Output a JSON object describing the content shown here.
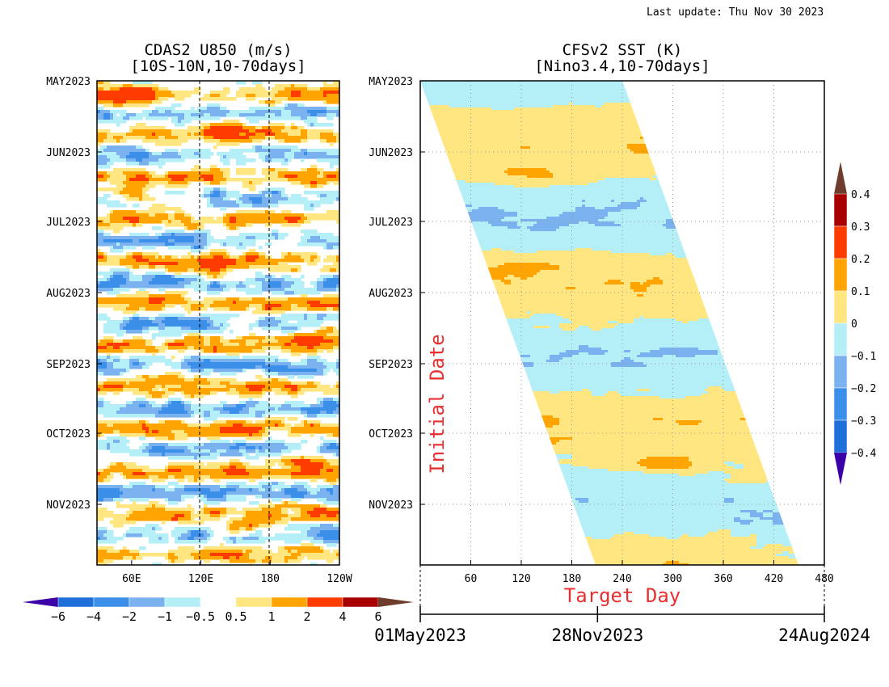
{
  "header": {
    "last_update": "Last update: Thu Nov 30 2023"
  },
  "colors": {
    "palette": [
      "#3b00a8",
      "#1e6fd8",
      "#3c8fe8",
      "#7ab2f0",
      "#b4eef6",
      "#ffffff",
      "#ffe680",
      "#ffa400",
      "#ff3c00",
      "#a80000",
      "#6e3d2e"
    ],
    "axis_red": "#e83030",
    "grid": "#999999"
  },
  "chart_data": [
    {
      "type": "heatmap",
      "title": "CDAS2 U850 (m/s)",
      "subtitle": "[10S-10N,10-70days]",
      "xlabel": "",
      "ylabel": "",
      "x_ticks": [
        "60E",
        "120E",
        "180",
        "120W"
      ],
      "x_tick_values": [
        60,
        120,
        180,
        240
      ],
      "xlim": [
        30,
        240
      ],
      "y_ticks": [
        "MAY2023",
        "JUN2023",
        "JUL2023",
        "AUG2023",
        "SEP2023",
        "OCT2023",
        "NOV2023"
      ],
      "ylim": [
        "2023-05-01",
        "2023-11-28"
      ],
      "dashed_meridians": [
        120,
        180
      ],
      "legend": {
        "placement": "bottom",
        "labels": [
          "−6",
          "−4",
          "−2",
          "−1",
          "−0.5",
          "0.5",
          "1",
          "2",
          "4",
          "6"
        ]
      },
      "notable_features": [
        {
          "where": "May 2023, 60E-90E",
          "value": 4
        },
        {
          "where": "early Jun 2023, 120E-180",
          "value": 4
        },
        {
          "where": "mid Aug 2023, 200E-240E",
          "value": 4
        },
        {
          "where": "mid Nov 2023, 120E-180",
          "value": 4
        }
      ]
    },
    {
      "type": "heatmap",
      "title": "CFSv2 SST (K)",
      "subtitle": "[Nino3.4,10-70days]",
      "xlabel": "Target Day",
      "ylabel": "Initial Date",
      "x_ticks": [
        "60",
        "120",
        "180",
        "240",
        "300",
        "360",
        "420",
        "480"
      ],
      "x_tick_values": [
        60,
        120,
        180,
        240,
        300,
        360,
        420,
        480
      ],
      "xlim": [
        0,
        480
      ],
      "y_ticks": [
        "MAY2023",
        "JUN2023",
        "JUL2023",
        "AUG2023",
        "SEP2023",
        "OCT2023",
        "NOV2023"
      ],
      "ylim": [
        "2023-05-01",
        "2023-11-28"
      ],
      "grid": true,
      "date_axis": [
        "01May2023",
        "28Nov2023",
        "24Aug2024"
      ],
      "date_axis_days": [
        0,
        211,
        481
      ],
      "legend": {
        "placement": "right",
        "labels": [
          "0.4",
          "0.3",
          "0.2",
          "0.1",
          "0",
          "−0.1",
          "−0.2",
          "−0.3",
          "−0.4"
        ]
      }
    }
  ]
}
